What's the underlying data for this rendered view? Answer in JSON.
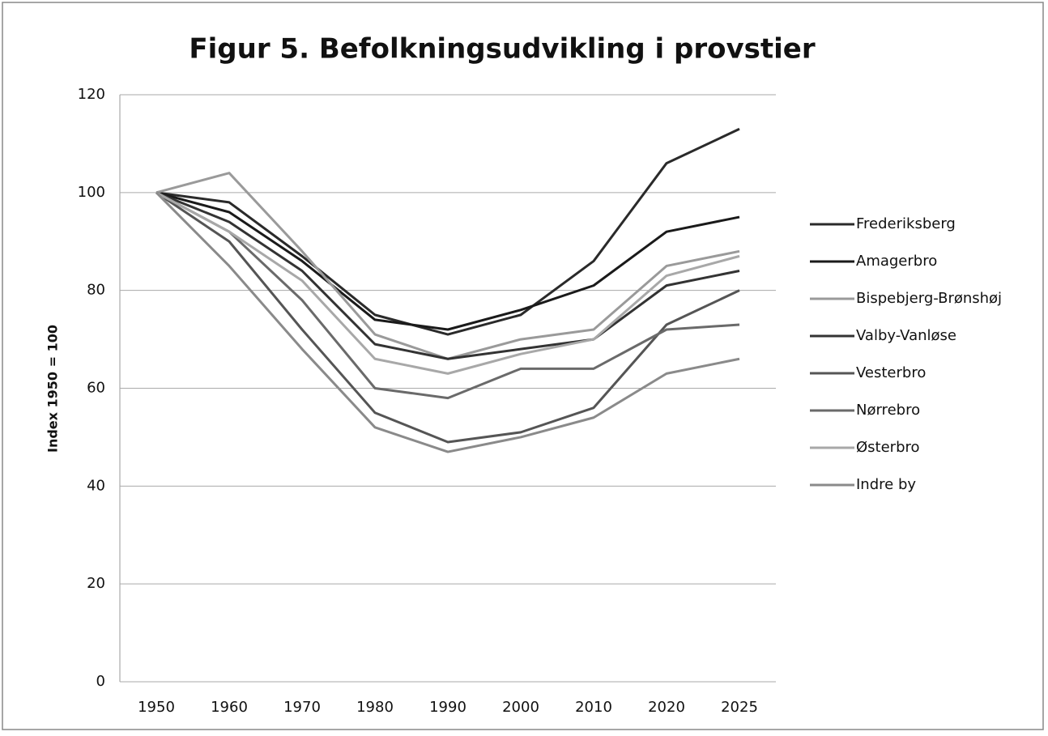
{
  "chart_data": {
    "type": "line",
    "title": "Figur 5. Befolkningsudvikling i provstier",
    "y_label": "Index 1950 = 100",
    "categories": [
      "1950",
      "1960",
      "1970",
      "1980",
      "1990",
      "2000",
      "2010",
      "2020",
      "2025"
    ],
    "ylim": [
      0,
      120
    ],
    "yticks": [
      0,
      20,
      40,
      60,
      80,
      100,
      120
    ],
    "grid": true,
    "legend": "right",
    "series": [
      {
        "name": "Frederiksberg",
        "color": "#2a2a2a",
        "values": [
          100,
          98,
          87,
          75,
          71,
          75,
          86,
          106,
          113
        ]
      },
      {
        "name": "Amagerbro",
        "color": "#1a1a1a",
        "values": [
          100,
          96,
          86,
          74,
          72,
          76,
          81,
          92,
          95
        ]
      },
      {
        "name": "Bispebjerg-Brønshøj",
        "color": "#9a9a9a",
        "values": [
          100,
          104,
          88,
          71,
          66,
          70,
          72,
          85,
          88
        ]
      },
      {
        "name": "Valby-Vanløse",
        "color": "#333333",
        "values": [
          100,
          94,
          84,
          69,
          66,
          68,
          70,
          81,
          84
        ]
      },
      {
        "name": "Vesterbro",
        "color": "#555555",
        "values": [
          100,
          90,
          72,
          55,
          49,
          51,
          56,
          73,
          80
        ]
      },
      {
        "name": "Nørrebro",
        "color": "#6a6a6a",
        "values": [
          100,
          92,
          78,
          60,
          58,
          64,
          64,
          72,
          73
        ]
      },
      {
        "name": "Østerbro",
        "color": "#a8a8a8",
        "values": [
          100,
          92,
          82,
          66,
          63,
          67,
          70,
          83,
          87
        ]
      },
      {
        "name": "Indre by",
        "color": "#8a8a8a",
        "values": [
          100,
          85,
          68,
          52,
          47,
          50,
          54,
          63,
          66
        ]
      }
    ]
  }
}
